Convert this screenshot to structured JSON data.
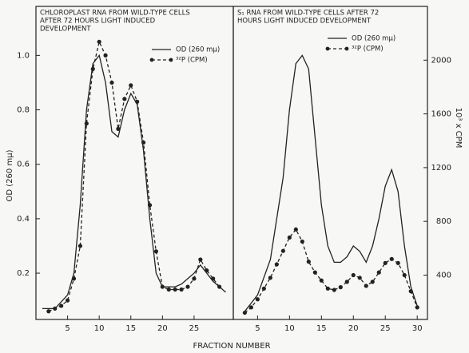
{
  "chart_data": [
    {
      "type": "line",
      "title": [
        "CHLOROPLAST RNA FROM WILD-TYPE CELLS",
        "AFTER 72 HOURS LIGHT INDUCED",
        "DEVELOPMENT"
      ],
      "xlabel": "FRACTION NUMBER",
      "ylabel": "OD (260 mμ)",
      "xlim": [
        0,
        31.2
      ],
      "xticks": [
        5,
        10,
        15,
        20,
        25
      ],
      "ylim": [
        0.03,
        1.18
      ],
      "yticks": [
        0.2,
        0.4,
        0.6,
        0.8,
        {
          "value": 1,
          "label": "1.0"
        }
      ],
      "series": [
        {
          "name": "OD (260 mμ)",
          "color": "#222",
          "dash": false,
          "marker": false,
          "x": [
            1,
            3,
            5,
            6,
            7,
            8,
            9,
            10,
            11,
            12,
            13,
            14,
            15,
            16,
            17,
            18,
            19,
            20,
            21,
            22,
            23,
            24,
            25,
            26,
            27,
            28,
            29,
            30
          ],
          "values": [
            0.07,
            0.07,
            0.12,
            0.2,
            0.45,
            0.8,
            0.97,
            1.0,
            0.9,
            0.72,
            0.7,
            0.8,
            0.86,
            0.82,
            0.65,
            0.4,
            0.2,
            0.15,
            0.15,
            0.15,
            0.16,
            0.18,
            0.2,
            0.23,
            0.2,
            0.17,
            0.15,
            0.13
          ]
        },
        {
          "name": "³²P (CPM)",
          "color": "#222",
          "dash": true,
          "marker": true,
          "x": [
            2,
            3,
            4,
            5,
            6,
            7,
            8,
            9,
            10,
            11,
            12,
            13,
            14,
            15,
            16,
            17,
            18,
            19,
            20,
            21,
            22,
            23,
            24,
            25,
            26,
            27,
            28,
            29
          ],
          "values": [
            0.06,
            0.07,
            0.08,
            0.1,
            0.18,
            0.3,
            0.75,
            0.95,
            1.05,
            1.0,
            0.9,
            0.73,
            0.84,
            0.89,
            0.83,
            0.68,
            0.45,
            0.28,
            0.15,
            0.14,
            0.14,
            0.14,
            0.15,
            0.18,
            0.25,
            0.21,
            0.18,
            0.15
          ]
        }
      ]
    },
    {
      "type": "line",
      "title": [
        "S₁ RNA FROM WILD-TYPE CELLS AFTER 72",
        "HOURS LIGHT INDUCED DEVELOPMENT"
      ],
      "y2label": "10³ x CPM",
      "xlim": [
        1.2,
        31.6
      ],
      "xticks": [
        5,
        10,
        15,
        20,
        25,
        30
      ],
      "ylim": [
        0.03,
        1.18
      ],
      "y2lim": [
        70,
        2400
      ],
      "y2ticks": [
        400,
        800,
        1200,
        1600,
        2000
      ],
      "series": [
        {
          "name": "OD (260 mμ)",
          "color": "#222",
          "dash": false,
          "marker": false,
          "x": [
            3,
            5,
            7,
            9,
            10,
            11,
            12,
            13,
            14,
            15,
            16,
            17,
            18,
            19,
            20,
            21,
            22,
            23,
            24,
            25,
            26,
            27,
            28,
            29,
            30
          ],
          "values": [
            0.06,
            0.12,
            0.25,
            0.55,
            0.8,
            0.97,
            1.0,
            0.95,
            0.7,
            0.45,
            0.3,
            0.24,
            0.24,
            0.26,
            0.3,
            0.28,
            0.24,
            0.3,
            0.4,
            0.52,
            0.58,
            0.5,
            0.3,
            0.15,
            0.08
          ]
        },
        {
          "name": "³²P (CPM)",
          "color": "#222",
          "dash": true,
          "marker": true,
          "axis": "y2",
          "x": [
            3,
            4,
            5,
            6,
            7,
            8,
            9,
            10,
            11,
            12,
            13,
            14,
            15,
            16,
            17,
            18,
            19,
            20,
            21,
            22,
            23,
            24,
            25,
            26,
            27,
            28,
            29,
            30
          ],
          "values": [
            120,
            160,
            220,
            300,
            380,
            480,
            580,
            680,
            740,
            650,
            500,
            420,
            360,
            300,
            290,
            310,
            350,
            400,
            380,
            320,
            350,
            420,
            490,
            520,
            490,
            400,
            280,
            160
          ]
        }
      ]
    }
  ]
}
